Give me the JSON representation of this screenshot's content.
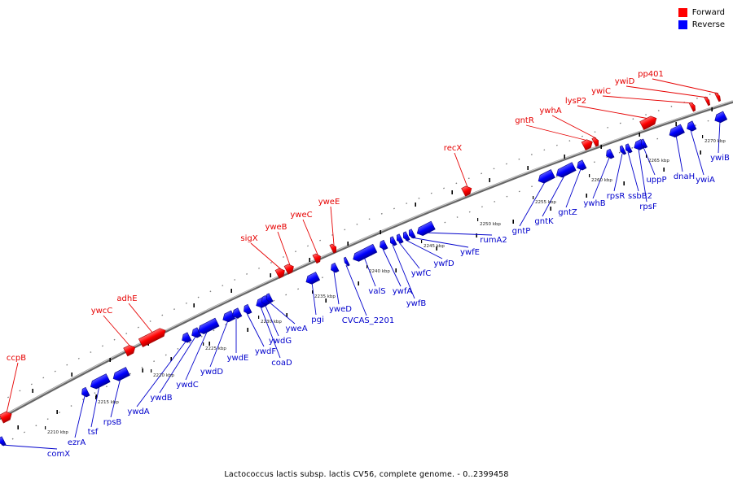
{
  "legend": {
    "forward_label": "Forward",
    "reverse_label": "Reverse",
    "forward_color": "#ff0000",
    "reverse_color": "#0000ff"
  },
  "colors": {
    "forward_label": "#e60000",
    "reverse_label": "#0000cc",
    "backbone": "#555555"
  },
  "caption": "Lactococcus lactis subsp. lactis CV56, complete genome. - 0..2399458",
  "kbp_ticks": [
    "2210 kbp",
    "2215 kbp",
    "2220 kbp",
    "2225 kbp",
    "2230 kbp",
    "2235 kbp",
    "2240 kbp",
    "2245 kbp",
    "2250 kbp",
    "2255 kbp",
    "2260 kbp",
    "2265 kbp",
    "2270 kbp"
  ],
  "forward_genes": [
    "ccpB",
    "ywcC",
    "adhE",
    "sigX",
    "yweB",
    "yweC",
    "yweE",
    "recX",
    "gntR",
    "ywhA",
    "lysP2",
    "ywiC",
    "ywiD",
    "pp401"
  ],
  "reverse_genes": [
    "comX",
    "ezrA",
    "tsf",
    "rpsB",
    "ywdA",
    "ywdB",
    "ywdC",
    "ywdD",
    "ywdE",
    "ywdF",
    "coaD",
    "ywdG",
    "yweA",
    "pgi",
    "yweD",
    "CVCAS_2201",
    "valS",
    "ywfA",
    "ywfB",
    "ywfC",
    "ywfD",
    "ywfE",
    "rumA2",
    "gntP",
    "gntK",
    "gntZ",
    "ywhB",
    "rpsR",
    "ssbB2",
    "rpsF",
    "uppP",
    "dnaH",
    "ywiA",
    "ywiB"
  ]
}
